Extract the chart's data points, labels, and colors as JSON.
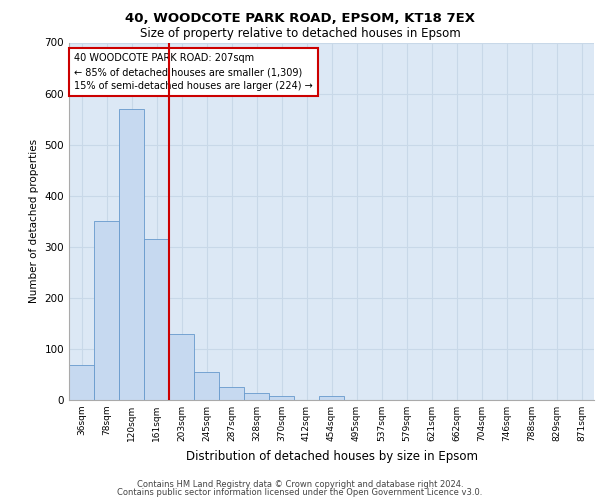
{
  "title1": "40, WOODCOTE PARK ROAD, EPSOM, KT18 7EX",
  "title2": "Size of property relative to detached houses in Epsom",
  "xlabel": "Distribution of detached houses by size in Epsom",
  "ylabel": "Number of detached properties",
  "categories": [
    "36sqm",
    "78sqm",
    "120sqm",
    "161sqm",
    "203sqm",
    "245sqm",
    "287sqm",
    "328sqm",
    "370sqm",
    "412sqm",
    "454sqm",
    "495sqm",
    "537sqm",
    "579sqm",
    "621sqm",
    "662sqm",
    "704sqm",
    "746sqm",
    "788sqm",
    "829sqm",
    "871sqm"
  ],
  "values": [
    68,
    350,
    570,
    315,
    130,
    55,
    25,
    13,
    7,
    0,
    8,
    0,
    0,
    0,
    0,
    0,
    0,
    0,
    0,
    0,
    0
  ],
  "bar_color": "#c6d9f0",
  "bar_edge_color": "#6699cc",
  "vline_x_index": 4,
  "vline_color": "#cc0000",
  "annotation_title": "40 WOODCOTE PARK ROAD: 207sqm",
  "annotation_line1": "← 85% of detached houses are smaller (1,309)",
  "annotation_line2": "15% of semi-detached houses are larger (224) →",
  "annotation_box_color": "#ffffff",
  "annotation_box_edge": "#cc0000",
  "ylim": [
    0,
    700
  ],
  "yticks": [
    0,
    100,
    200,
    300,
    400,
    500,
    600,
    700
  ],
  "grid_color": "#c8d8e8",
  "background_color": "#dce8f5",
  "footer1": "Contains HM Land Registry data © Crown copyright and database right 2024.",
  "footer2": "Contains public sector information licensed under the Open Government Licence v3.0."
}
